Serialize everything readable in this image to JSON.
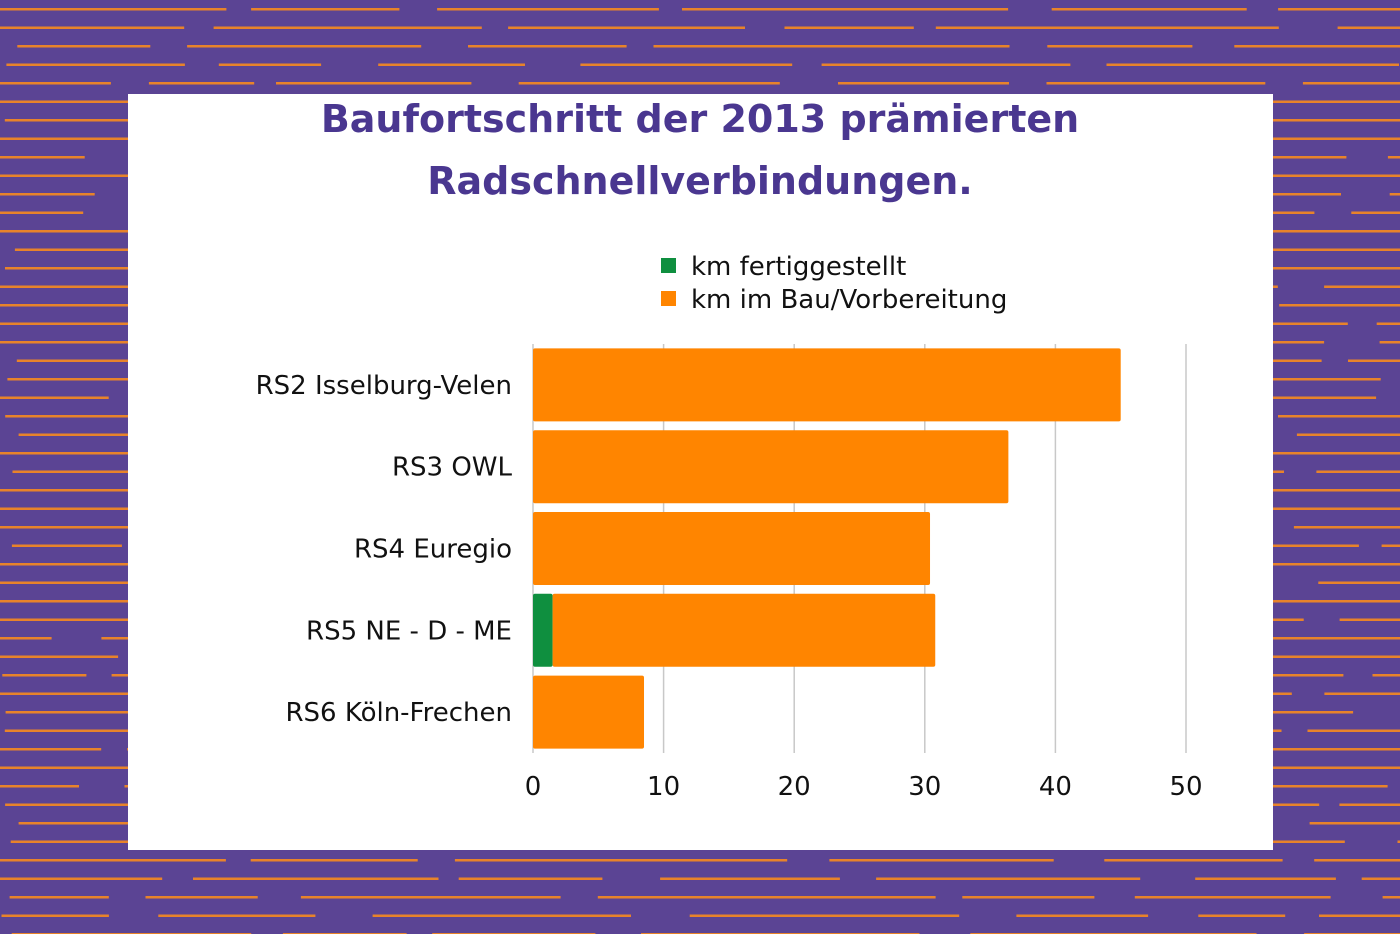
{
  "colors": {
    "background": "#5b4494",
    "stripe": "#e8832a",
    "title": "#4a3790",
    "completed": "#0f8f3f",
    "in_progress": "#ff8500",
    "grid": "#c8c8c8"
  },
  "chart_data": {
    "type": "bar",
    "orientation": "horizontal",
    "stacked": true,
    "title_lines": [
      "Baufortschritt der 2013 prämierten",
      "Radschnellverbindungen."
    ],
    "categories": [
      "RS2 Isselburg-Velen",
      "RS3 OWL",
      "RS4 Euregio",
      "RS5 NE - D - ME",
      "RS6 Köln-Frechen"
    ],
    "series": [
      {
        "name": "km fertiggestellt",
        "color": "#0f8f3f",
        "values": [
          0,
          0,
          0,
          1.5,
          0
        ]
      },
      {
        "name": "km im Bau/Vorbereitung",
        "color": "#ff8500",
        "values": [
          45,
          36.4,
          30.4,
          29.3,
          8.5
        ]
      }
    ],
    "xlim": [
      0,
      50
    ],
    "xticks": [
      "0",
      "10",
      "20",
      "30",
      "40",
      "50"
    ],
    "grid": "vertical",
    "legend_position": "top"
  }
}
